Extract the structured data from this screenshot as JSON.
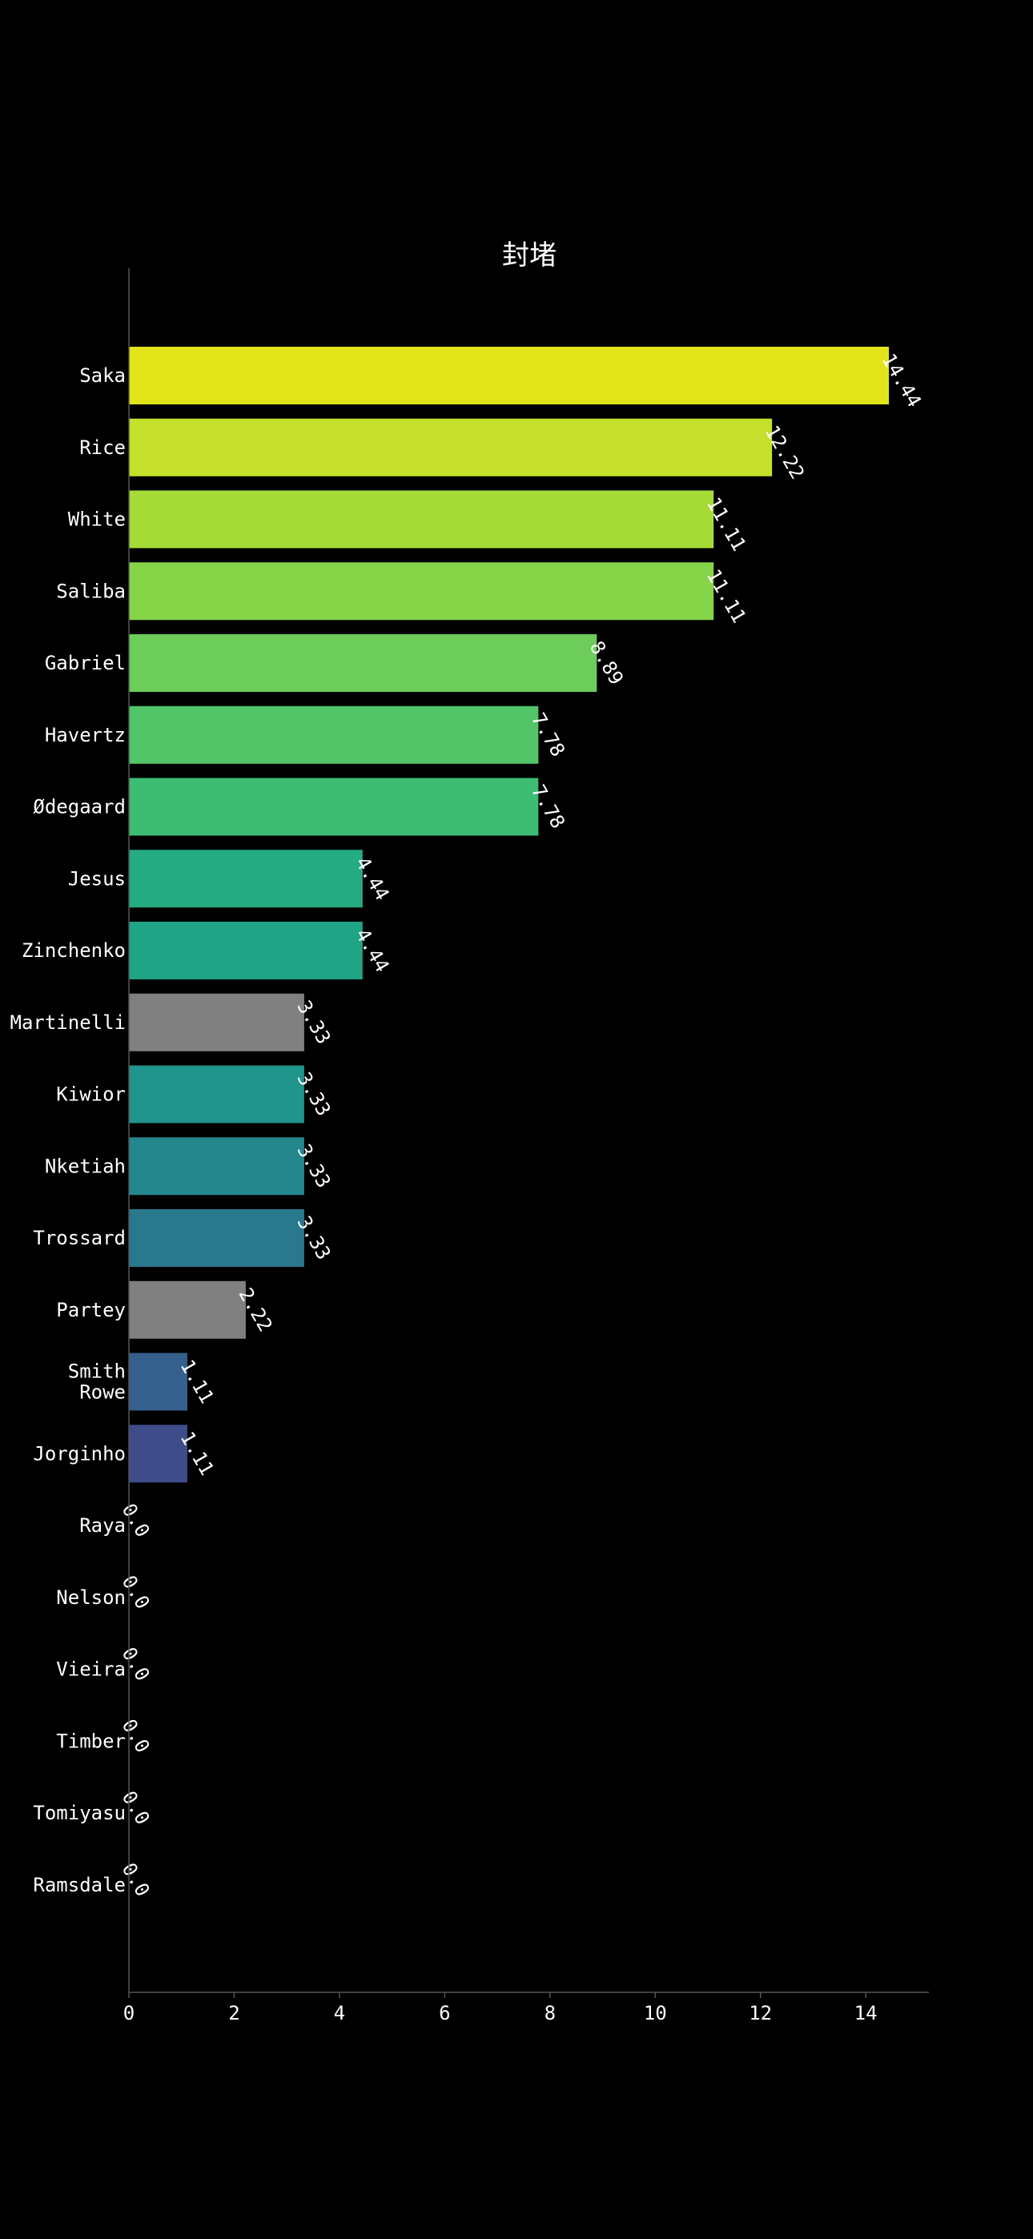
{
  "chart_data": {
    "type": "bar",
    "orientation": "horizontal",
    "title": "封堵",
    "xlabel": "",
    "ylabel": "",
    "xlim": [
      0,
      15.2
    ],
    "xticks": [
      0,
      2,
      4,
      6,
      8,
      10,
      12,
      14
    ],
    "grid": false,
    "legend": "none",
    "categories": [
      "Saka",
      "Rice",
      "White",
      "Saliba",
      "Gabriel",
      "Havertz",
      "Ødegaard",
      "Jesus",
      "Zinchenko",
      "Martinelli",
      "Kiwior",
      "Nketiah",
      "Trossard",
      "Partey",
      "Smith Rowe",
      "Jorginho",
      "Raya",
      "Nelson",
      "Vieira",
      "Timber",
      "Tomiyasu",
      "Ramsdale"
    ],
    "values": [
      14.44,
      12.22,
      11.11,
      11.11,
      8.89,
      7.78,
      7.78,
      4.44,
      4.44,
      3.33,
      3.33,
      3.33,
      3.33,
      2.22,
      1.11,
      1.11,
      0.0,
      0.0,
      0.0,
      0.0,
      0.0,
      0.0
    ],
    "value_labels": [
      "14.44",
      "12.22",
      "11.11",
      "11.11",
      "8.89",
      "7.78",
      "7.78",
      "4.44",
      "4.44",
      "3.33",
      "3.33",
      "3.33",
      "3.33",
      "2.22",
      "1.11",
      "1.11",
      "0.0",
      "0.0",
      "0.0",
      "0.0",
      "0.0",
      "0.0"
    ],
    "colors": [
      "#e2e419",
      "#c5e02b",
      "#a5db36",
      "#86d549",
      "#6ccd5a",
      "#52c569",
      "#3dbc74",
      "#25ac82",
      "#20a486",
      "#808080",
      "#1f958b",
      "#24878e",
      "#2a788e",
      "#808080",
      "#35608d",
      "#3e4c8a",
      "#46337f",
      "#471d6c",
      "#481467",
      "#46085c",
      "#450559",
      "#440154"
    ],
    "background": "#000000",
    "text_color": "#ffffff",
    "axis_color": "#555555"
  }
}
